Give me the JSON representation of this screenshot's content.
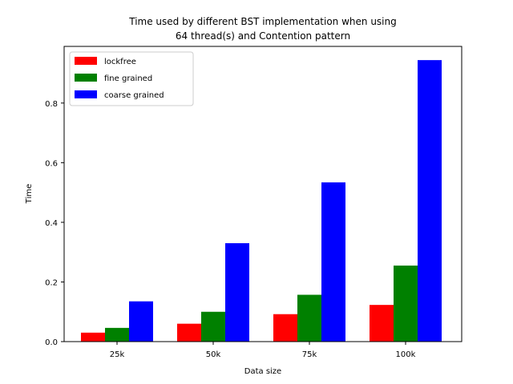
{
  "chart_data": {
    "type": "bar",
    "title_lines": [
      "Time used by different BST implementation when using",
      "64 thread(s) and Contention pattern"
    ],
    "xlabel": "Data size",
    "ylabel": "Time",
    "categories": [
      "25k",
      "50k",
      "75k",
      "100k"
    ],
    "series": [
      {
        "name": "lockfree",
        "color": "#ff0000",
        "values": [
          0.03,
          0.06,
          0.092,
          0.123
        ]
      },
      {
        "name": "fine grained",
        "color": "#008000",
        "values": [
          0.046,
          0.1,
          0.157,
          0.255
        ]
      },
      {
        "name": "coarse grained",
        "color": "#0000ff",
        "values": [
          0.135,
          0.33,
          0.534,
          0.944
        ]
      }
    ],
    "ylim": [
      0,
      0.99
    ],
    "yticks": [
      0.0,
      0.2,
      0.4,
      0.6,
      0.8
    ],
    "ytick_labels": [
      "0.0",
      "0.2",
      "0.4",
      "0.6",
      "0.8"
    ],
    "grid": false,
    "legend_position": "upper-left"
  }
}
